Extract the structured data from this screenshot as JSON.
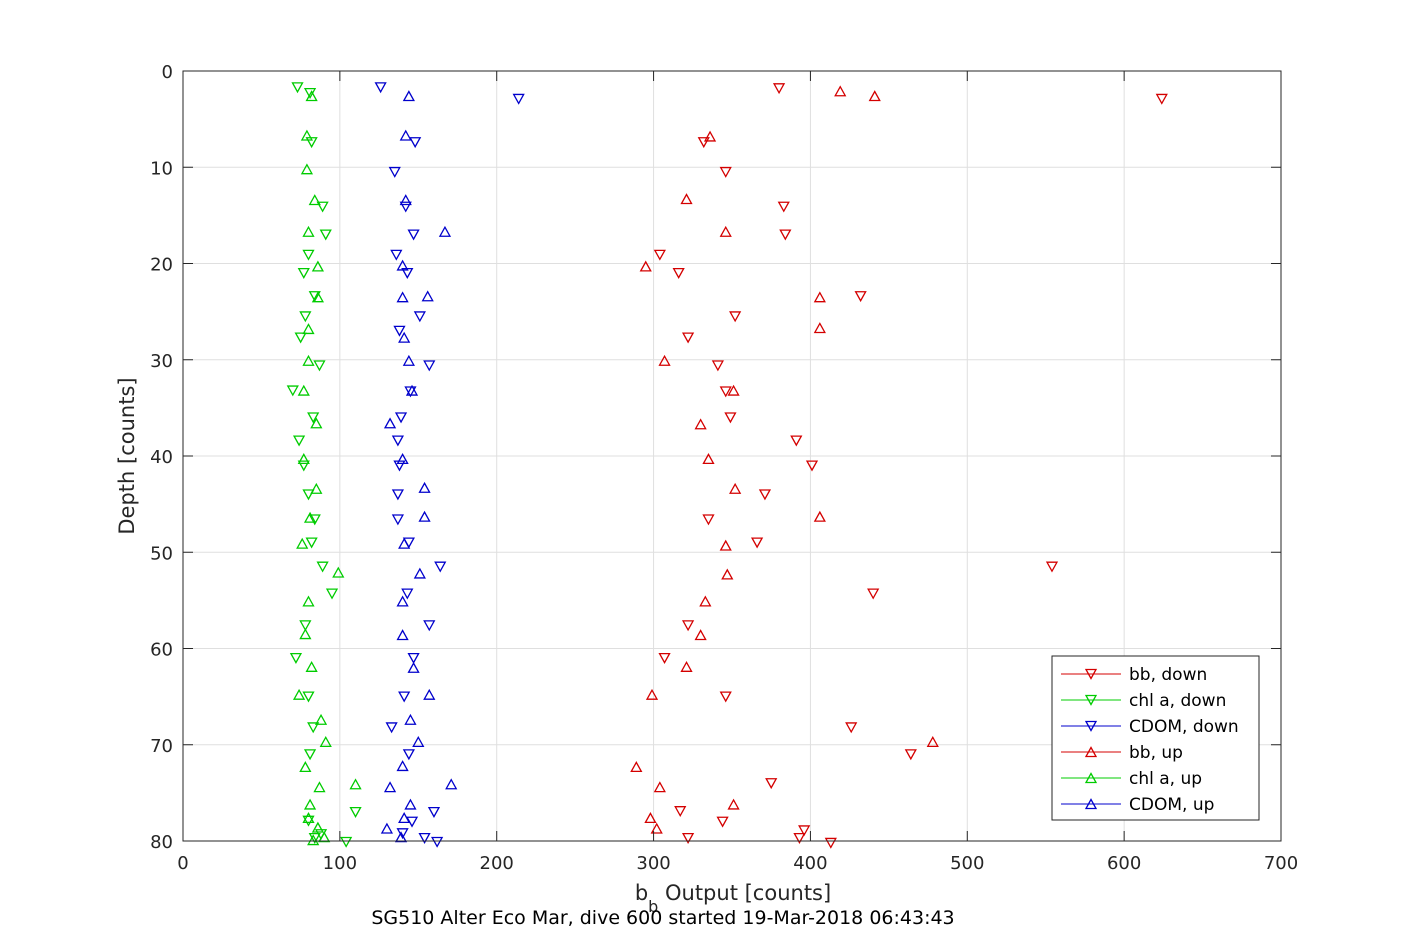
{
  "chart_data": {
    "type": "scatter",
    "title": "SG510 Alter Eco Mar, dive 600 started 19-Mar-2018 06:43:43",
    "xlabel_main": "b",
    "xlabel_sub": "b",
    "xlabel_rest": " Output [counts]",
    "ylabel": "Depth [counts]",
    "xlim": [
      0,
      700
    ],
    "ylim": [
      0,
      80
    ],
    "y_reversed": true,
    "xticks": [
      0,
      100,
      200,
      300,
      400,
      500,
      600,
      700
    ],
    "yticks": [
      0,
      10,
      20,
      30,
      40,
      50,
      60,
      70,
      80
    ],
    "grid": true,
    "legend_position": "bottom-right",
    "series": [
      {
        "name": "bb, down",
        "color": "#d40000",
        "marker": "triangle-down",
        "points": [
          [
            380,
            1.8
          ],
          [
            624,
            2.9
          ],
          [
            332,
            7.4
          ],
          [
            346,
            10.5
          ],
          [
            383,
            14.1
          ],
          [
            384,
            17.0
          ],
          [
            304,
            19.1
          ],
          [
            316,
            21.0
          ],
          [
            432,
            23.4
          ],
          [
            352,
            25.5
          ],
          [
            322,
            27.7
          ],
          [
            341,
            30.6
          ],
          [
            346,
            33.3
          ],
          [
            349,
            36.0
          ],
          [
            391,
            38.4
          ],
          [
            401,
            41.0
          ],
          [
            371,
            44.0
          ],
          [
            335,
            46.6
          ],
          [
            366,
            49.0
          ],
          [
            554,
            51.5
          ],
          [
            440,
            54.3
          ],
          [
            322,
            57.6
          ],
          [
            307,
            61.0
          ],
          [
            346,
            65.0
          ],
          [
            426,
            68.2
          ],
          [
            464,
            71.0
          ],
          [
            375,
            74.0
          ],
          [
            317,
            76.9
          ],
          [
            344,
            78.0
          ],
          [
            396,
            78.9
          ],
          [
            393,
            79.7
          ],
          [
            322,
            79.7
          ],
          [
            413,
            80.2
          ]
        ]
      },
      {
        "name": "chl a, down",
        "color": "#00cc00",
        "marker": "triangle-down",
        "points": [
          [
            73,
            1.7
          ],
          [
            81,
            2.3
          ],
          [
            82,
            7.4
          ],
          [
            89,
            14.1
          ],
          [
            91,
            17.0
          ],
          [
            80,
            19.1
          ],
          [
            77,
            21.0
          ],
          [
            84,
            23.4
          ],
          [
            78,
            25.5
          ],
          [
            75,
            27.7
          ],
          [
            87,
            30.6
          ],
          [
            70,
            33.2
          ],
          [
            83,
            36.0
          ],
          [
            74,
            38.4
          ],
          [
            77,
            41.0
          ],
          [
            80,
            44.0
          ],
          [
            84,
            46.6
          ],
          [
            82,
            49.0
          ],
          [
            89,
            51.5
          ],
          [
            95,
            54.3
          ],
          [
            78,
            57.6
          ],
          [
            72,
            61.0
          ],
          [
            80,
            65.0
          ],
          [
            83,
            68.2
          ],
          [
            81,
            71.0
          ],
          [
            110,
            77.0
          ],
          [
            80,
            77.9
          ],
          [
            88,
            79.3
          ],
          [
            104,
            80.1
          ],
          [
            84,
            79.7
          ]
        ]
      },
      {
        "name": "CDOM, down",
        "color": "#0000cc",
        "marker": "triangle-down",
        "points": [
          [
            126,
            1.7
          ],
          [
            214,
            2.9
          ],
          [
            148,
            7.4
          ],
          [
            135,
            10.5
          ],
          [
            142,
            14.1
          ],
          [
            147,
            17.0
          ],
          [
            136,
            19.1
          ],
          [
            143,
            21.0
          ],
          [
            151,
            25.5
          ],
          [
            138,
            27.0
          ],
          [
            157,
            30.6
          ],
          [
            145,
            33.3
          ],
          [
            139,
            36.0
          ],
          [
            137,
            38.4
          ],
          [
            138,
            41.0
          ],
          [
            137,
            44.0
          ],
          [
            137,
            46.6
          ],
          [
            144,
            49.0
          ],
          [
            164,
            51.5
          ],
          [
            143,
            54.3
          ],
          [
            157,
            57.6
          ],
          [
            147,
            61.0
          ],
          [
            141,
            65.0
          ],
          [
            133,
            68.2
          ],
          [
            144,
            71.0
          ],
          [
            160,
            77.0
          ],
          [
            146,
            78.0
          ],
          [
            140,
            79.2
          ],
          [
            154,
            79.7
          ],
          [
            162,
            80.1
          ]
        ]
      },
      {
        "name": "bb, up",
        "color": "#d40000",
        "marker": "triangle-up",
        "points": [
          [
            419,
            2.1
          ],
          [
            441,
            2.6
          ],
          [
            336,
            6.8
          ],
          [
            321,
            13.3
          ],
          [
            346,
            16.7
          ],
          [
            295,
            20.3
          ],
          [
            406,
            23.5
          ],
          [
            406,
            26.7
          ],
          [
            307,
            30.1
          ],
          [
            351,
            33.2
          ],
          [
            330,
            36.7
          ],
          [
            335,
            40.3
          ],
          [
            352,
            43.4
          ],
          [
            406,
            46.3
          ],
          [
            346,
            49.3
          ],
          [
            347,
            52.3
          ],
          [
            333,
            55.1
          ],
          [
            330,
            58.6
          ],
          [
            321,
            61.9
          ],
          [
            299,
            64.8
          ],
          [
            478,
            69.7
          ],
          [
            289,
            72.3
          ],
          [
            304,
            74.4
          ],
          [
            351,
            76.2
          ],
          [
            298,
            77.6
          ],
          [
            302,
            78.7
          ]
        ]
      },
      {
        "name": "chl a, up",
        "color": "#00cc00",
        "marker": "triangle-up",
        "points": [
          [
            82,
            2.6
          ],
          [
            79,
            6.7
          ],
          [
            79,
            10.2
          ],
          [
            84,
            13.4
          ],
          [
            80,
            16.7
          ],
          [
            86,
            20.3
          ],
          [
            86,
            23.5
          ],
          [
            80,
            26.8
          ],
          [
            80,
            30.1
          ],
          [
            77,
            33.2
          ],
          [
            85,
            36.6
          ],
          [
            77,
            40.3
          ],
          [
            85,
            43.4
          ],
          [
            81,
            46.4
          ],
          [
            76,
            49.1
          ],
          [
            99,
            52.1
          ],
          [
            80,
            55.1
          ],
          [
            78,
            58.5
          ],
          [
            82,
            61.9
          ],
          [
            74,
            64.8
          ],
          [
            88,
            67.4
          ],
          [
            91,
            69.7
          ],
          [
            78,
            72.3
          ],
          [
            87,
            74.4
          ],
          [
            110,
            74.1
          ],
          [
            81,
            76.2
          ],
          [
            80,
            77.6
          ],
          [
            86,
            78.6
          ],
          [
            90,
            79.6
          ],
          [
            83,
            79.9
          ]
        ]
      },
      {
        "name": "CDOM, up",
        "color": "#0000cc",
        "marker": "triangle-up",
        "points": [
          [
            144,
            2.6
          ],
          [
            142,
            6.7
          ],
          [
            142,
            13.4
          ],
          [
            167,
            16.7
          ],
          [
            140,
            20.2
          ],
          [
            140,
            23.5
          ],
          [
            156,
            23.4
          ],
          [
            141,
            27.7
          ],
          [
            144,
            30.1
          ],
          [
            146,
            33.2
          ],
          [
            132,
            36.6
          ],
          [
            140,
            40.3
          ],
          [
            154,
            43.3
          ],
          [
            154,
            46.3
          ],
          [
            141,
            49.1
          ],
          [
            151,
            52.2
          ],
          [
            140,
            55.1
          ],
          [
            140,
            58.6
          ],
          [
            147,
            62.0
          ],
          [
            157,
            64.8
          ],
          [
            145,
            67.4
          ],
          [
            150,
            69.7
          ],
          [
            140,
            72.2
          ],
          [
            132,
            74.4
          ],
          [
            171,
            74.1
          ],
          [
            145,
            76.2
          ],
          [
            141,
            77.6
          ],
          [
            130,
            78.7
          ],
          [
            139,
            79.6
          ]
        ]
      }
    ]
  }
}
